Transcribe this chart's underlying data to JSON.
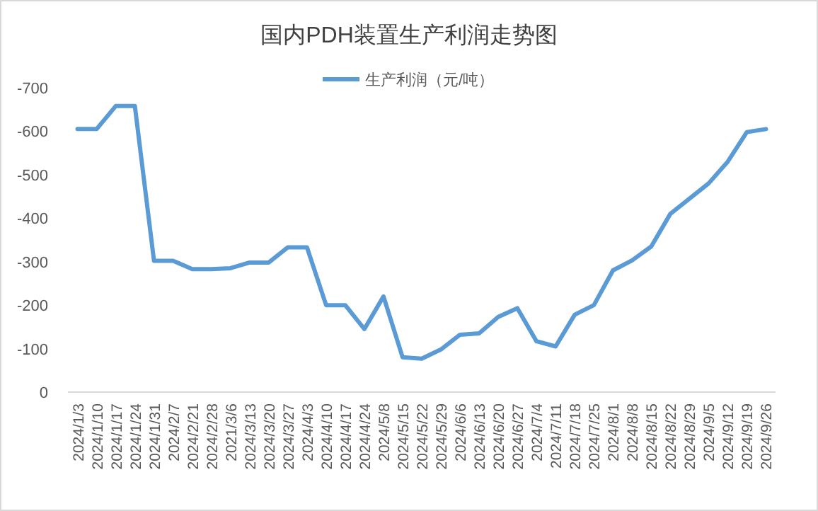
{
  "chart_data": {
    "type": "line",
    "title": "国内PDH装置生产利润走势图",
    "categories": [
      "2024/1/3",
      "2024/1/10",
      "2024/1/17",
      "2024/1/24",
      "2024/1/31",
      "2024/2/7",
      "2024/2/21",
      "2024/2/28",
      "2021/3/6",
      "2024/3/13",
      "2024/3/20",
      "2024/3/27",
      "2024/4/3",
      "2024/4/10",
      "2024/4/17",
      "2024/4/24",
      "2024/5/8",
      "2024/5/15",
      "2024/5/22",
      "2024/5/29",
      "2024/6/6",
      "2024/6/13",
      "2024/6/20",
      "2024/6/27",
      "2024/7/4",
      "2024/7/11",
      "2024/7/18",
      "2024/7/25",
      "2024/8/1",
      "2024/8/8",
      "2024/8/15",
      "2024/8/22",
      "2024/8/29",
      "2024/9/5",
      "2024/9/12",
      "2024/9/19",
      "2024/9/26"
    ],
    "series": [
      {
        "name": "生产利润（元/吨）",
        "color": "#5b9bd5",
        "values": [
          -605,
          -605,
          -658,
          -658,
          -302,
          -302,
          -283,
          -283,
          -285,
          -298,
          -298,
          -333,
          -333,
          -200,
          -200,
          -145,
          -220,
          -80,
          -77,
          -98,
          -132,
          -135,
          -173,
          -193,
          -117,
          -105,
          -178,
          -200,
          -280,
          -303,
          -335,
          -410,
          -445,
          -480,
          -530,
          -598,
          -605
        ]
      }
    ],
    "ylim": [
      0,
      -700
    ],
    "yticks": [
      -700,
      -600,
      -500,
      -400,
      -300,
      -200,
      -100,
      0
    ],
    "grid": false,
    "legend": "top",
    "marker": "none",
    "line_style": "solid"
  }
}
